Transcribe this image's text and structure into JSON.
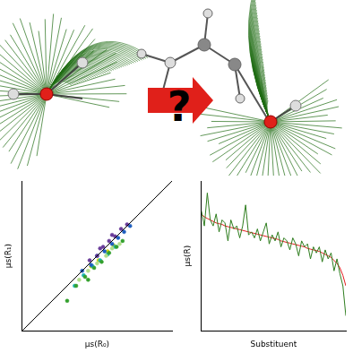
{
  "diagram": {
    "label": "?"
  },
  "chart_data": [
    {
      "type": "scatter",
      "x_label": "μs(R₀)",
      "y_label": "μs(R₁)",
      "xlim": [
        0,
        1
      ],
      "ylim": [
        0,
        1
      ],
      "tick_labels": false,
      "grid": false,
      "series": [
        {
          "type": "line",
          "color": "#000000",
          "x": [
            0,
            1
          ],
          "values": [
            0,
            1
          ]
        },
        {
          "color": "#6a3d9a",
          "x": [
            0.45,
            0.5,
            0.54,
            0.58,
            0.62,
            0.66,
            0.7,
            0.52,
            0.6
          ],
          "values": [
            0.47,
            0.5,
            0.56,
            0.6,
            0.63,
            0.68,
            0.71,
            0.55,
            0.64
          ]
        },
        {
          "color": "#1f5fbf",
          "x": [
            0.4,
            0.46,
            0.5,
            0.55,
            0.6,
            0.64,
            0.68,
            0.72
          ],
          "values": [
            0.4,
            0.44,
            0.5,
            0.53,
            0.58,
            0.62,
            0.66,
            0.7
          ]
        },
        {
          "color": "#33a02c",
          "x": [
            0.3,
            0.36,
            0.42,
            0.48,
            0.53,
            0.58,
            0.63,
            0.67,
            0.44
          ],
          "values": [
            0.2,
            0.3,
            0.36,
            0.42,
            0.46,
            0.52,
            0.56,
            0.6,
            0.34
          ]
        },
        {
          "color": "#b2df8a",
          "x": [
            0.38,
            0.44,
            0.5,
            0.56,
            0.6,
            0.65
          ],
          "values": [
            0.34,
            0.4,
            0.45,
            0.5,
            0.55,
            0.58
          ]
        },
        {
          "color": "#1fb4b4",
          "x": [
            0.35,
            0.41,
            0.47,
            0.52,
            0.57,
            0.62
          ],
          "values": [
            0.3,
            0.37,
            0.43,
            0.47,
            0.51,
            0.56
          ]
        },
        {
          "color": "#d4d400",
          "x": [
            0.46,
            0.51,
            0.57,
            0.61
          ],
          "values": [
            0.43,
            0.47,
            0.53,
            0.57
          ]
        }
      ]
    },
    {
      "type": "line",
      "x_label": "Substituent",
      "y_label": "μs(R)",
      "x": [
        1,
        2,
        3,
        4,
        5,
        6,
        7,
        8,
        9,
        10,
        11,
        12,
        13,
        14,
        15,
        16,
        17,
        18,
        19,
        20,
        21,
        22,
        23,
        24,
        25,
        26,
        27,
        28,
        29,
        30,
        31,
        32,
        33,
        34,
        35,
        36,
        37,
        38,
        39,
        40,
        41,
        42,
        43,
        44,
        45,
        46,
        47,
        48,
        49,
        50
      ],
      "xlim": [
        1,
        50
      ],
      "ylim": [
        0,
        1
      ],
      "tick_labels": false,
      "grid": false,
      "series": [
        {
          "color": "#2e7d1e",
          "values": [
            0.8,
            0.7,
            0.92,
            0.74,
            0.7,
            0.78,
            0.66,
            0.74,
            0.72,
            0.6,
            0.74,
            0.68,
            0.7,
            0.62,
            0.7,
            0.84,
            0.64,
            0.66,
            0.62,
            0.68,
            0.6,
            0.66,
            0.72,
            0.58,
            0.64,
            0.6,
            0.66,
            0.56,
            0.62,
            0.6,
            0.54,
            0.62,
            0.58,
            0.5,
            0.6,
            0.56,
            0.58,
            0.48,
            0.56,
            0.52,
            0.56,
            0.46,
            0.54,
            0.48,
            0.52,
            0.4,
            0.48,
            0.38,
            0.3,
            0.1
          ]
        },
        {
          "color": "#e31a1c",
          "values": [
            0.78,
            0.76,
            0.75,
            0.74,
            0.73,
            0.72,
            0.715,
            0.71,
            0.7,
            0.695,
            0.69,
            0.685,
            0.68,
            0.675,
            0.67,
            0.665,
            0.66,
            0.655,
            0.65,
            0.645,
            0.64,
            0.635,
            0.63,
            0.625,
            0.62,
            0.615,
            0.61,
            0.6,
            0.595,
            0.59,
            0.585,
            0.58,
            0.575,
            0.57,
            0.565,
            0.56,
            0.55,
            0.545,
            0.54,
            0.535,
            0.53,
            0.52,
            0.51,
            0.5,
            0.49,
            0.47,
            0.45,
            0.42,
            0.37,
            0.3
          ]
        }
      ]
    }
  ]
}
